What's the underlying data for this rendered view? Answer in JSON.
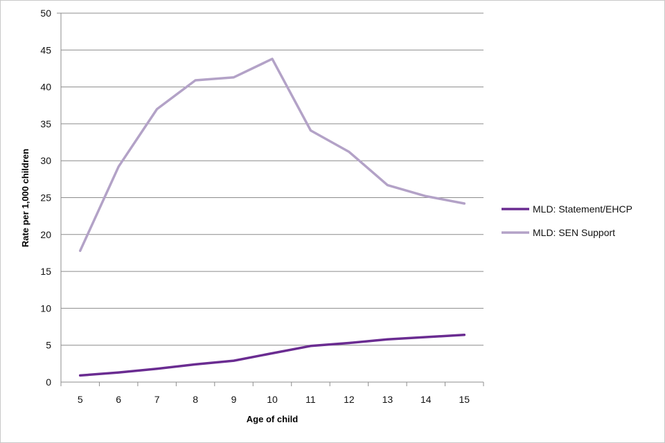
{
  "chart_data": {
    "type": "line",
    "title": "",
    "xlabel": "Age of child",
    "ylabel": "Rate per 1,000 children",
    "x": [
      "5",
      "6",
      "7",
      "8",
      "9",
      "10",
      "11",
      "12",
      "13",
      "14",
      "15"
    ],
    "ylim": [
      0,
      50
    ],
    "yticks": [
      "0",
      "5",
      "10",
      "15",
      "20",
      "25",
      "30",
      "35",
      "40",
      "45",
      "50"
    ],
    "grid": "horizontal",
    "legend_position": "right",
    "series": [
      {
        "name": "MLD: Statement/EHCP",
        "color": "#6a2c91",
        "values": [
          0.9,
          1.3,
          1.8,
          2.4,
          2.9,
          3.9,
          4.9,
          5.3,
          5.8,
          6.1,
          6.4
        ]
      },
      {
        "name": "MLD: SEN Support",
        "color": "#b3a2c7",
        "values": [
          17.8,
          29.2,
          37.0,
          40.9,
          41.3,
          43.8,
          34.1,
          31.2,
          26.7,
          25.2,
          24.2
        ]
      }
    ]
  }
}
